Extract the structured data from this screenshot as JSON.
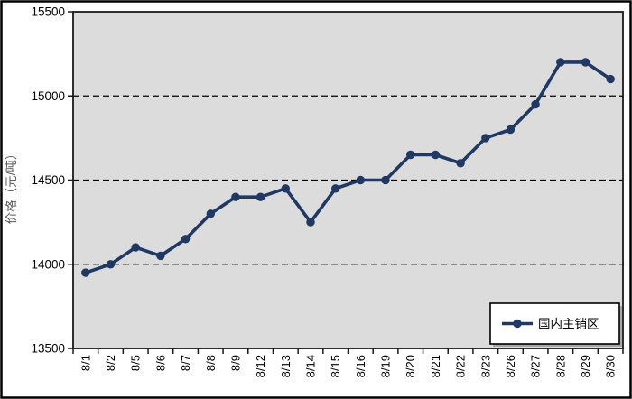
{
  "figure": {
    "background": "#ffffff",
    "border_color": "#000000"
  },
  "chart_data": {
    "type": "line",
    "title": "",
    "xlabel": "",
    "ylabel": "价格（元/吨）",
    "categories": [
      "8/1",
      "8/2",
      "8/5",
      "8/6",
      "8/7",
      "8/8",
      "8/9",
      "8/12",
      "8/13",
      "8/14",
      "8/15",
      "8/16",
      "8/19",
      "8/20",
      "8/21",
      "8/22",
      "8/23",
      "8/26",
      "8/27",
      "8/28",
      "8/29",
      "8/30"
    ],
    "series": [
      {
        "name": "国内主销区",
        "values": [
          13950,
          14000,
          14100,
          14050,
          14150,
          14300,
          14400,
          14400,
          14450,
          14250,
          14450,
          14500,
          14500,
          14650,
          14650,
          14600,
          14750,
          14800,
          14950,
          15200,
          15200,
          15100
        ]
      }
    ],
    "ylim": [
      13500,
      15500
    ],
    "yticks": [
      13500,
      14000,
      14500,
      15000,
      15500
    ],
    "grid": "horizontal-dashed",
    "legend_position": "bottom-right-inside",
    "marker": "circle",
    "colors": {
      "series": "#1f3864",
      "plot_background": "#dcdcdc",
      "plot_border": "#1a1a1a",
      "gridline": "#000000",
      "tick_label": "#000000",
      "axis_title": "#595959",
      "legend_background": "#ffffff",
      "legend_border": "#000000",
      "legend_shadow": "#a6a6a6"
    }
  },
  "legend": {
    "label": "国内主销区"
  }
}
